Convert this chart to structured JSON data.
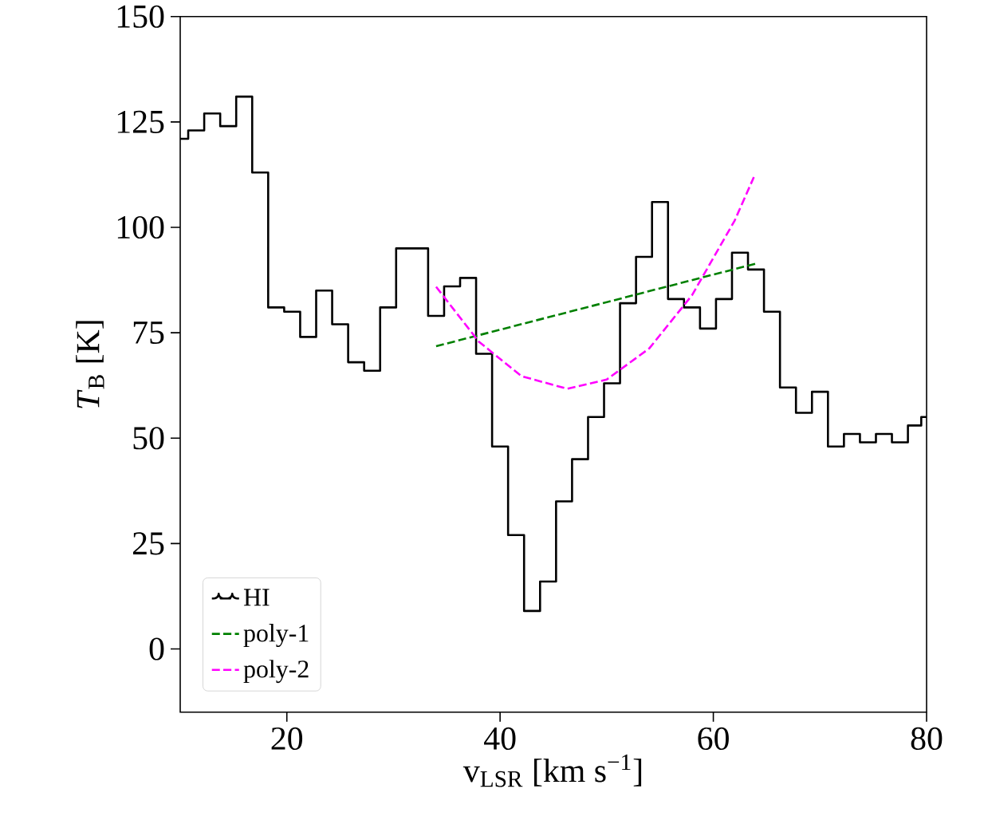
{
  "chart_data": {
    "type": "step",
    "xlabel": "v$_{LSR}$ [km s$^{−1}$]",
    "ylabel": "*T*$_{B}$ [K]",
    "xlim": [
      10,
      80
    ],
    "ylim": [
      -15,
      150
    ],
    "xticks": [
      20,
      40,
      60,
      80
    ],
    "yticks": [
      0,
      25,
      50,
      75,
      100,
      125,
      150
    ],
    "grid": false,
    "legend": "bottom left",
    "series": [
      {
        "name": "HI",
        "color": "#000000",
        "line_style": "solid",
        "x": [
          10,
          11.5,
          13,
          14.5,
          16,
          17.5,
          19,
          20.5,
          22,
          23.5,
          25,
          26.5,
          28,
          29.5,
          31,
          32.5,
          34,
          35.5,
          37,
          38.5,
          40,
          41.5,
          43,
          44.5,
          46,
          47.5,
          49,
          50.5,
          52,
          53.5,
          55,
          56.5,
          58,
          59.5,
          61,
          62.5,
          64,
          65.5,
          67,
          68.5,
          70,
          71.5,
          73,
          74.5,
          76,
          77.5,
          79,
          80
        ],
        "values": [
          121,
          123,
          127,
          124,
          131,
          113,
          81,
          80,
          74,
          85,
          77,
          68,
          66,
          81,
          95,
          95,
          79,
          86,
          88,
          70,
          48,
          27,
          9,
          16,
          35,
          45,
          55,
          63,
          82,
          93,
          106,
          83,
          81,
          76,
          83,
          94,
          90,
          80,
          62,
          56,
          61,
          48,
          51,
          49,
          51,
          49,
          53,
          55
        ]
      },
      {
        "name": "poly-1",
        "type": "line",
        "color": "#008000",
        "line_style": "dashed",
        "x": [
          34,
          64
        ],
        "values": [
          71.8,
          91.4
        ]
      },
      {
        "name": "poly-2",
        "type": "line",
        "color": "#ff00ff",
        "line_style": "dashed",
        "x": [
          34,
          38,
          42,
          46.3,
          50,
          54,
          58,
          62,
          63.8
        ],
        "values": [
          85.9,
          72.9,
          64.7,
          61.7,
          63.9,
          71.3,
          83.9,
          101.6,
          111.9
        ]
      }
    ]
  }
}
